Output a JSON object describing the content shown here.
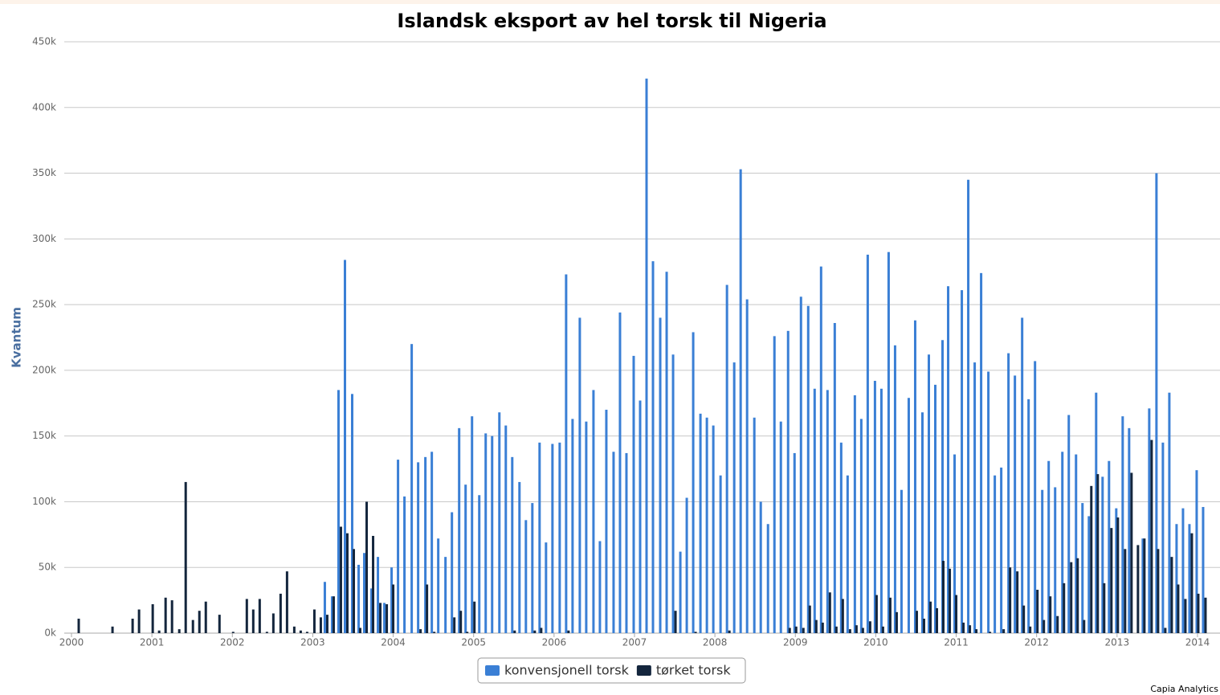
{
  "chart_data": {
    "type": "bar",
    "title": "Islandsk eksport av hel torsk til Nigeria",
    "y_label": "Kvantum",
    "credit": "Capia Analytics",
    "xlim": [
      1999.91,
      2014.28
    ],
    "xticks": [
      2000,
      2001,
      2002,
      2003,
      2004,
      2005,
      2006,
      2007,
      2008,
      2009,
      2010,
      2011,
      2012,
      2013,
      2014
    ],
    "ylim": [
      0,
      450000
    ],
    "yticks": [
      {
        "value": 0,
        "label": "0k"
      },
      {
        "value": 50000,
        "label": "50k"
      },
      {
        "value": 100000,
        "label": "100k"
      },
      {
        "value": 150000,
        "label": "150k"
      },
      {
        "value": 200000,
        "label": "200k"
      },
      {
        "value": 250000,
        "label": "250k"
      },
      {
        "value": 300000,
        "label": "300k"
      },
      {
        "value": 350000,
        "label": "350k"
      },
      {
        "value": 400000,
        "label": "400k"
      },
      {
        "value": 450000,
        "label": "450k"
      }
    ],
    "grid": true,
    "legend": "bottom",
    "series": [
      {
        "name": "konvensjonell torsk",
        "color": "#3a7fd5",
        "x": [
          2003.15,
          2003.24,
          2003.32,
          2003.4,
          2003.49,
          2003.57,
          2003.64,
          2003.73,
          2003.81,
          2003.89,
          2003.98,
          2004.06,
          2004.14,
          2004.23,
          2004.31,
          2004.4,
          2004.48,
          2004.56,
          2004.65,
          2004.73,
          2004.82,
          2004.9,
          2004.98,
          2005.07,
          2005.15,
          2005.23,
          2005.32,
          2005.4,
          2005.48,
          2005.57,
          2005.65,
          2005.73,
          2005.82,
          2005.9,
          2005.98,
          2006.07,
          2006.15,
          2006.23,
          2006.32,
          2006.4,
          2006.49,
          2006.57,
          2006.65,
          2006.74,
          2006.82,
          2006.9,
          2006.99,
          2007.07,
          2007.15,
          2007.23,
          2007.32,
          2007.4,
          2007.48,
          2007.57,
          2007.65,
          2007.73,
          2007.82,
          2007.9,
          2007.98,
          2008.07,
          2008.15,
          2008.24,
          2008.32,
          2008.4,
          2008.49,
          2008.57,
          2008.66,
          2008.74,
          2008.82,
          2008.91,
          2008.99,
          2009.07,
          2009.16,
          2009.24,
          2009.32,
          2009.4,
          2009.49,
          2009.57,
          2009.65,
          2009.74,
          2009.82,
          2009.9,
          2009.99,
          2010.07,
          2010.16,
          2010.24,
          2010.32,
          2010.41,
          2010.49,
          2010.58,
          2010.66,
          2010.74,
          2010.83,
          2010.9,
          2010.98,
          2011.07,
          2011.15,
          2011.23,
          2011.31,
          2011.4,
          2011.48,
          2011.56,
          2011.65,
          2011.73,
          2011.82,
          2011.9,
          2011.98,
          2012.07,
          2012.15,
          2012.23,
          2012.32,
          2012.4,
          2012.49,
          2012.57,
          2012.65,
          2012.74,
          2012.82,
          2012.9,
          2012.99,
          2013.07,
          2013.15,
          2013.32,
          2013.4,
          2013.49,
          2013.57,
          2013.65,
          2013.74,
          2013.82,
          2013.9,
          2013.99,
          2014.07
        ],
        "values": [
          39000,
          28000,
          185000,
          284000,
          182000,
          52000,
          61000,
          34000,
          58000,
          23000,
          50000,
          132000,
          104000,
          220000,
          130000,
          134000,
          138000,
          72000,
          58000,
          92000,
          156000,
          113000,
          165000,
          105000,
          152000,
          150000,
          168000,
          158000,
          134000,
          115000,
          86000,
          99000,
          145000,
          69000,
          144000,
          145000,
          273000,
          163000,
          240000,
          161000,
          185000,
          70000,
          170000,
          138000,
          244000,
          137000,
          211000,
          177000,
          422000,
          283000,
          240000,
          275000,
          212000,
          62000,
          103000,
          229000,
          167000,
          164000,
          158000,
          120000,
          265000,
          206000,
          353000,
          254000,
          164000,
          100000,
          83000,
          226000,
          161000,
          230000,
          137000,
          256000,
          249000,
          186000,
          279000,
          185000,
          236000,
          145000,
          120000,
          181000,
          163000,
          288000,
          192000,
          186000,
          290000,
          219000,
          109000,
          179000,
          238000,
          168000,
          212000,
          189000,
          223000,
          264000,
          136000,
          261000,
          345000,
          206000,
          274000,
          199000,
          120000,
          126000,
          213000,
          196000,
          240000,
          178000,
          207000,
          109000,
          131000,
          111000,
          138000,
          166000,
          136000,
          99000,
          89000,
          183000,
          119000,
          131000,
          95000,
          165000,
          156000,
          72000,
          171000,
          350000,
          145000,
          183000,
          83000,
          95000,
          83000,
          124000,
          96000
        ]
      },
      {
        "name": "tørket torsk",
        "color": "#14263d",
        "x": [
          2000.09,
          2000.51,
          2000.76,
          2000.84,
          2001.01,
          2001.09,
          2001.17,
          2001.25,
          2001.34,
          2001.42,
          2001.51,
          2001.59,
          2001.67,
          2001.84,
          2002.01,
          2002.18,
          2002.26,
          2002.34,
          2002.43,
          2002.51,
          2002.6,
          2002.68,
          2002.77,
          2002.85,
          2002.93,
          2003.02,
          2003.1,
          2003.18,
          2003.26,
          2003.35,
          2003.43,
          2003.51,
          2003.59,
          2003.67,
          2003.75,
          2003.84,
          2003.92,
          2004.0,
          2004.34,
          2004.42,
          2004.51,
          2004.76,
          2004.84,
          2004.92,
          2005.01,
          2005.51,
          2005.76,
          2005.84,
          2006.18,
          2007.51,
          2007.76,
          2008.18,
          2008.93,
          2009.01,
          2009.1,
          2009.18,
          2009.26,
          2009.34,
          2009.43,
          2009.51,
          2009.59,
          2009.68,
          2009.76,
          2009.84,
          2009.93,
          2010.01,
          2010.09,
          2010.18,
          2010.26,
          2010.51,
          2010.6,
          2010.68,
          2010.76,
          2010.84,
          2010.92,
          2011.0,
          2011.09,
          2011.17,
          2011.25,
          2011.42,
          2011.59,
          2011.67,
          2011.76,
          2011.84,
          2011.92,
          2012.01,
          2012.09,
          2012.17,
          2012.26,
          2012.34,
          2012.43,
          2012.51,
          2012.59,
          2012.68,
          2012.76,
          2012.84,
          2012.93,
          2013.01,
          2013.1,
          2013.18,
          2013.26,
          2013.34,
          2013.43,
          2013.51,
          2013.6,
          2013.68,
          2013.76,
          2013.85,
          2013.93,
          2014.01,
          2014.1
        ],
        "values": [
          11000,
          5000,
          11000,
          18000,
          22000,
          2000,
          27000,
          25000,
          3000,
          115000,
          10000,
          17000,
          24000,
          14000,
          1000,
          26000,
          18000,
          26000,
          1000,
          15000,
          30000,
          47000,
          5000,
          2000,
          1000,
          18000,
          12000,
          14000,
          28000,
          81000,
          76000,
          64000,
          4000,
          100000,
          74000,
          23000,
          22000,
          37000,
          3000,
          37000,
          1000,
          12000,
          17000,
          1000,
          24000,
          2000,
          2000,
          4000,
          2000,
          17000,
          1000,
          2000,
          4000,
          5000,
          4000,
          21000,
          10000,
          8000,
          31000,
          5000,
          26000,
          3000,
          6000,
          4000,
          9000,
          29000,
          5000,
          27000,
          16000,
          17000,
          11000,
          24000,
          19000,
          55000,
          49000,
          29000,
          8000,
          6000,
          3000,
          1000,
          3000,
          50000,
          47000,
          21000,
          5000,
          33000,
          10000,
          28000,
          13000,
          38000,
          54000,
          57000,
          10000,
          112000,
          121000,
          38000,
          80000,
          88000,
          64000,
          122000,
          67000,
          72000,
          147000,
          64000,
          4000,
          58000,
          37000,
          26000,
          76000,
          30000,
          27000
        ]
      }
    ]
  }
}
